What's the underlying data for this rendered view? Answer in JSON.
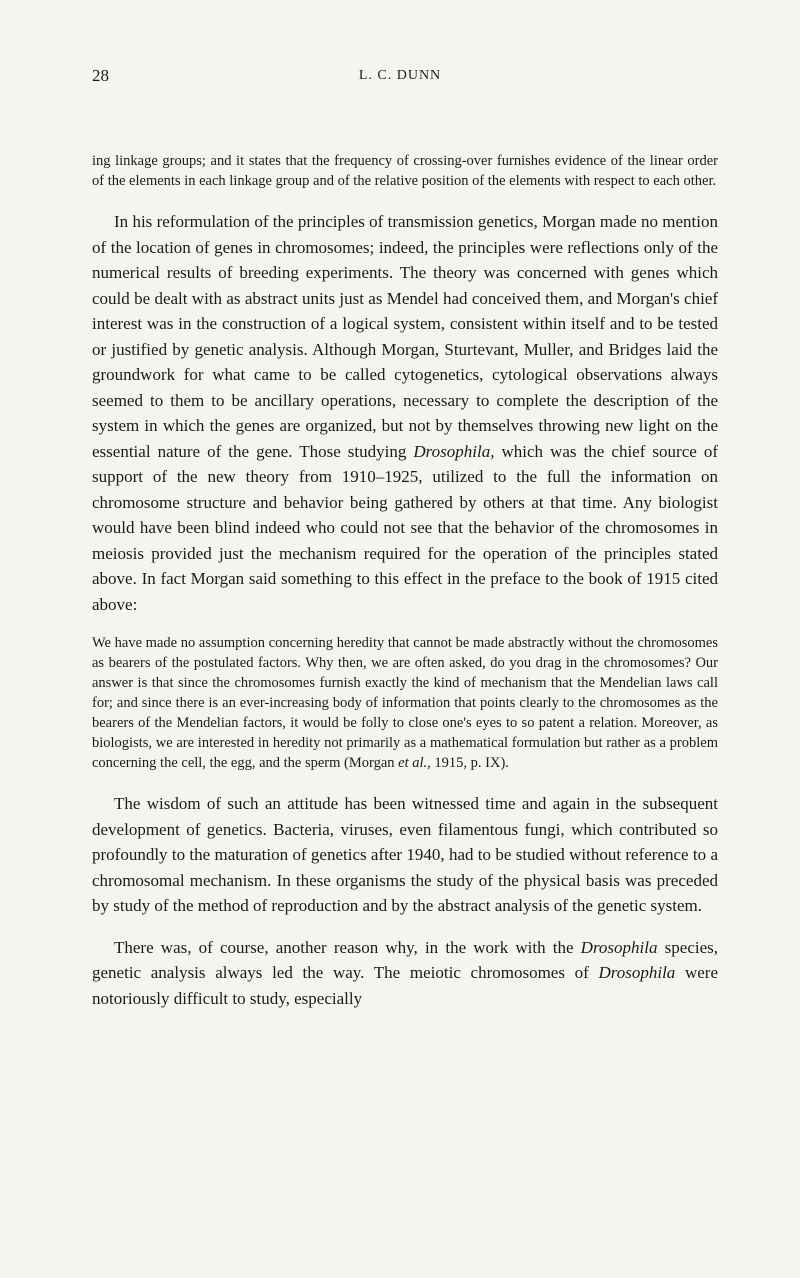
{
  "page_number": "28",
  "running_header": "L. C. DUNN",
  "quote_intro": "ing linkage groups; and it states that the frequency of crossing-over furnishes evidence of the linear order of the elements in each linkage group and of the relative position of the elements with respect to each other.",
  "para1_pre": "In his reformulation of the principles of transmission genetics, Morgan made no mention of the location of genes in chromosomes; indeed, the principles were reflections only of the numerical results of breeding experiments. The theory was concerned with genes which could be dealt with as abstract units just as Mendel had conceived them, and Morgan's chief interest was in the construction of a logical system, consistent within itself and to be tested or justified by genetic analysis. Although Morgan, Sturtevant, Muller, and Bridges laid the groundwork for what came to be called cytogenetics, cytological observations always seemed to them to be ancillary operations, necessary to complete the description of the system in which the genes are organized, but not by themselves throwing new light on the essential nature of the gene. Those studying ",
  "para1_italic": "Drosophila,",
  "para1_post": " which was the chief source of support of the new theory from 1910–1925, utilized to the full the information on chromosome structure and behavior being gathered by others at that time. Any biologist would have been blind indeed who could not see that the behavior of the chromosomes in meiosis provided just the mechanism required for the operation of the principles stated above. In fact Morgan said something to this effect in the preface to the book of 1915 cited above:",
  "quote2_pre": "We have made no assumption concerning heredity that cannot be made abstractly without the chromosomes as bearers of the postulated factors. Why then, we are often asked, do you drag in the chromosomes? Our answer is that since the chromosomes furnish exactly the kind of mechanism that the Mendelian laws call for; and since there is an ever-increasing body of information that points clearly to the chromosomes as the bearers of the Mendelian factors, it would be folly to close one's eyes to so patent a relation. Moreover, as biologists, we are interested in heredity not primarily as a mathematical formulation but rather as a problem concerning the cell, the egg, and the sperm (Morgan ",
  "quote2_italic": "et al.,",
  "quote2_post": " 1915, p. IX).",
  "para2": "The wisdom of such an attitude has been witnessed time and again in the subsequent development of genetics. Bacteria, viruses, even filamentous fungi, which contributed so profoundly to the maturation of genetics after 1940, had to be studied without reference to a chromosomal mechanism. In these organisms the study of the physical basis was preceded by study of the method of reproduction and by the abstract analysis of the genetic system.",
  "para3_pre": "There was, of course, another reason why, in the work with the ",
  "para3_italic1": "Drosophila",
  "para3_mid": " species, genetic analysis always led the way. The meiotic chromosomes of ",
  "para3_italic2": "Drosophila",
  "para3_post": " were notoriously difficult to study, especially"
}
